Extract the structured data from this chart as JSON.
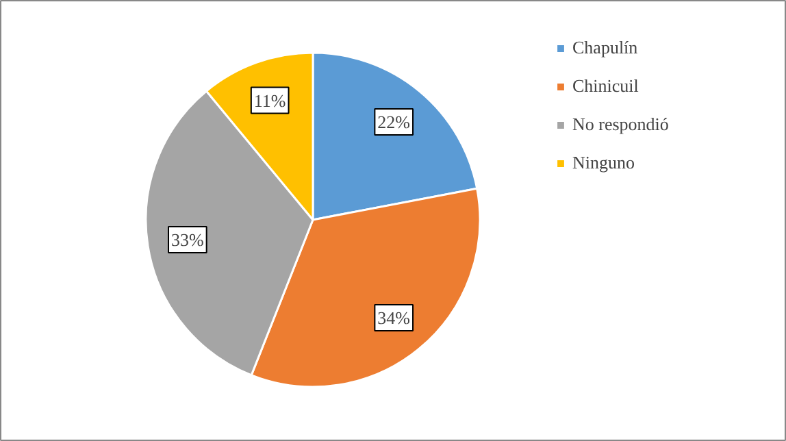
{
  "chart_data": {
    "type": "pie",
    "categories": [
      "Chapulín",
      "Chinicuil",
      "No respondió",
      "Ninguno"
    ],
    "values": [
      22,
      34,
      33,
      11
    ],
    "colors": [
      "#5b9bd5",
      "#ed7d31",
      "#a5a5a5",
      "#ffc000"
    ],
    "value_labels": [
      "22%",
      "34%",
      "33%",
      "11%"
    ],
    "legend": "right"
  }
}
